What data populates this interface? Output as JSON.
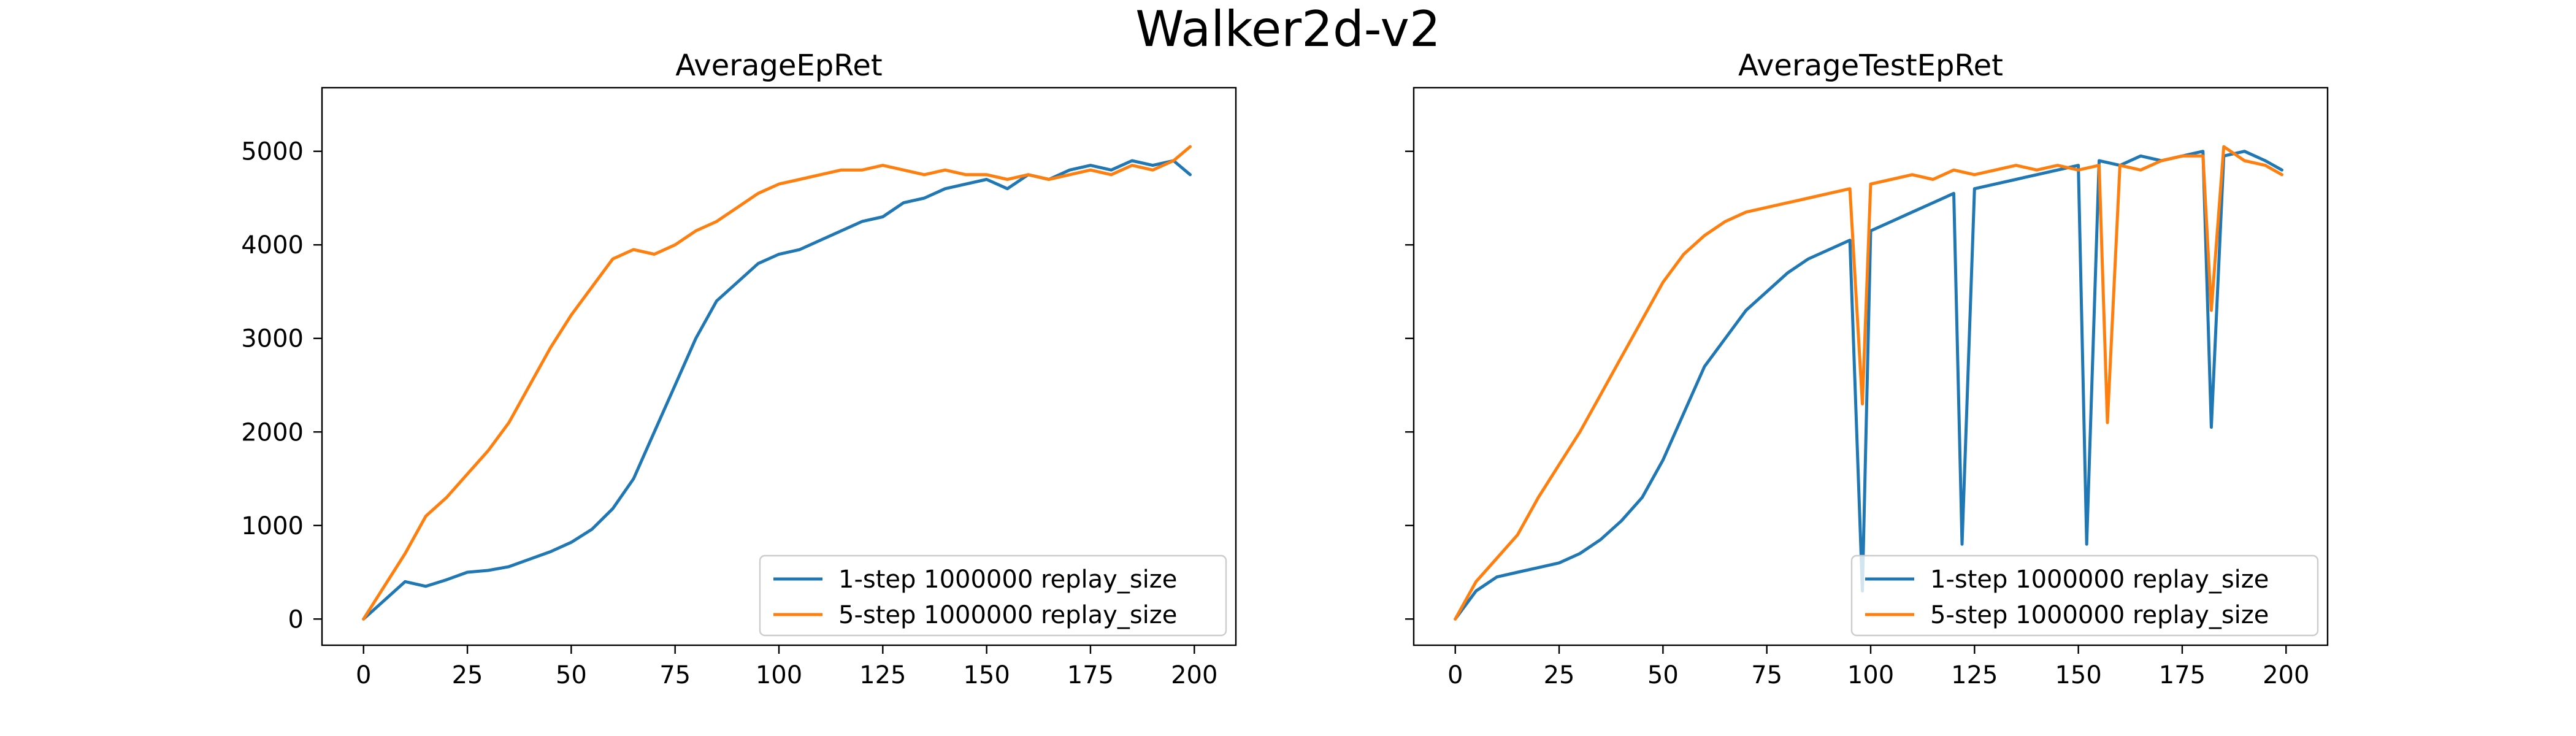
{
  "figure": {
    "suptitle": "Walker2d-v2"
  },
  "colors": {
    "series_blue": "#1f77b4",
    "series_orange": "#ff7f0e",
    "axes": "#000000",
    "legend_border": "#cccccc"
  },
  "chart_data": [
    {
      "type": "line",
      "title": "AverageEpRet",
      "xlabel": "",
      "ylabel": "",
      "xlim": [
        -10,
        210
      ],
      "ylim": [
        -280,
        5680
      ],
      "xticks": [
        0,
        25,
        50,
        75,
        100,
        125,
        150,
        175,
        200
      ],
      "yticks": [
        0,
        1000,
        2000,
        3000,
        4000,
        5000
      ],
      "grid": false,
      "legend": "lower-right",
      "series": [
        {
          "name": "1-step 1000000 replay_size",
          "color": "#1f77b4",
          "x": [
            0,
            5,
            10,
            15,
            20,
            25,
            30,
            35,
            40,
            45,
            50,
            55,
            60,
            65,
            70,
            75,
            80,
            85,
            90,
            95,
            100,
            105,
            110,
            115,
            120,
            125,
            130,
            135,
            140,
            145,
            150,
            155,
            160,
            165,
            170,
            175,
            180,
            185,
            190,
            195,
            199
          ],
          "y": [
            0,
            200,
            400,
            350,
            420,
            500,
            520,
            560,
            640,
            720,
            820,
            960,
            1180,
            1500,
            2000,
            2500,
            3000,
            3400,
            3600,
            3800,
            3900,
            3950,
            4050,
            4150,
            4250,
            4300,
            4450,
            4500,
            4600,
            4650,
            4700,
            4600,
            4750,
            4700,
            4800,
            4850,
            4800,
            4900,
            4850,
            4900,
            4750
          ]
        },
        {
          "name": "5-step 1000000 replay_size",
          "color": "#ff7f0e",
          "x": [
            0,
            5,
            10,
            15,
            20,
            25,
            30,
            35,
            40,
            45,
            50,
            55,
            60,
            65,
            70,
            75,
            80,
            85,
            90,
            95,
            100,
            105,
            110,
            115,
            120,
            125,
            130,
            135,
            140,
            145,
            150,
            155,
            160,
            165,
            170,
            175,
            180,
            185,
            190,
            195,
            199
          ],
          "y": [
            0,
            350,
            700,
            1100,
            1300,
            1550,
            1800,
            2100,
            2500,
            2900,
            3250,
            3550,
            3850,
            3950,
            3900,
            4000,
            4150,
            4250,
            4400,
            4550,
            4650,
            4700,
            4750,
            4800,
            4800,
            4850,
            4800,
            4750,
            4800,
            4750,
            4750,
            4700,
            4750,
            4700,
            4750,
            4800,
            4750,
            4850,
            4800,
            4900,
            5050
          ]
        }
      ]
    },
    {
      "type": "line",
      "title": "AverageTestEpRet",
      "xlabel": "",
      "ylabel": "",
      "xlim": [
        -10,
        210
      ],
      "ylim": [
        -280,
        5680
      ],
      "xticks": [
        0,
        25,
        50,
        75,
        100,
        125,
        150,
        175,
        200
      ],
      "yticks": [
        0,
        1000,
        2000,
        3000,
        4000,
        5000
      ],
      "grid": false,
      "legend": "lower-right",
      "series": [
        {
          "name": "1-step 1000000 replay_size",
          "color": "#1f77b4",
          "x": [
            0,
            5,
            10,
            15,
            20,
            25,
            30,
            35,
            40,
            45,
            50,
            55,
            60,
            65,
            70,
            75,
            80,
            85,
            90,
            95,
            98,
            100,
            105,
            110,
            115,
            120,
            122,
            125,
            130,
            135,
            140,
            145,
            150,
            152,
            155,
            160,
            165,
            170,
            175,
            180,
            182,
            185,
            190,
            195,
            199
          ],
          "y": [
            0,
            300,
            450,
            500,
            550,
            600,
            700,
            850,
            1050,
            1300,
            1700,
            2200,
            2700,
            3000,
            3300,
            3500,
            3700,
            3850,
            3950,
            4050,
            300,
            4150,
            4250,
            4350,
            4450,
            4550,
            800,
            4600,
            4650,
            4700,
            4750,
            4800,
            4850,
            800,
            4900,
            4850,
            4950,
            4900,
            4950,
            5000,
            2050,
            4950,
            5000,
            4900,
            4800
          ]
        },
        {
          "name": "5-step 1000000 replay_size",
          "color": "#ff7f0e",
          "x": [
            0,
            5,
            10,
            15,
            20,
            25,
            30,
            35,
            40,
            45,
            50,
            55,
            60,
            65,
            70,
            75,
            80,
            85,
            90,
            95,
            98,
            100,
            105,
            110,
            115,
            120,
            125,
            130,
            135,
            140,
            145,
            150,
            155,
            157,
            160,
            165,
            170,
            175,
            180,
            182,
            185,
            190,
            195,
            199
          ],
          "y": [
            0,
            400,
            650,
            900,
            1300,
            1650,
            2000,
            2400,
            2800,
            3200,
            3600,
            3900,
            4100,
            4250,
            4350,
            4400,
            4450,
            4500,
            4550,
            4600,
            2300,
            4650,
            4700,
            4750,
            4700,
            4800,
            4750,
            4800,
            4850,
            4800,
            4850,
            4800,
            4850,
            2100,
            4850,
            4800,
            4900,
            4950,
            4950,
            3300,
            5050,
            4900,
            4850,
            4750
          ]
        }
      ]
    }
  ]
}
